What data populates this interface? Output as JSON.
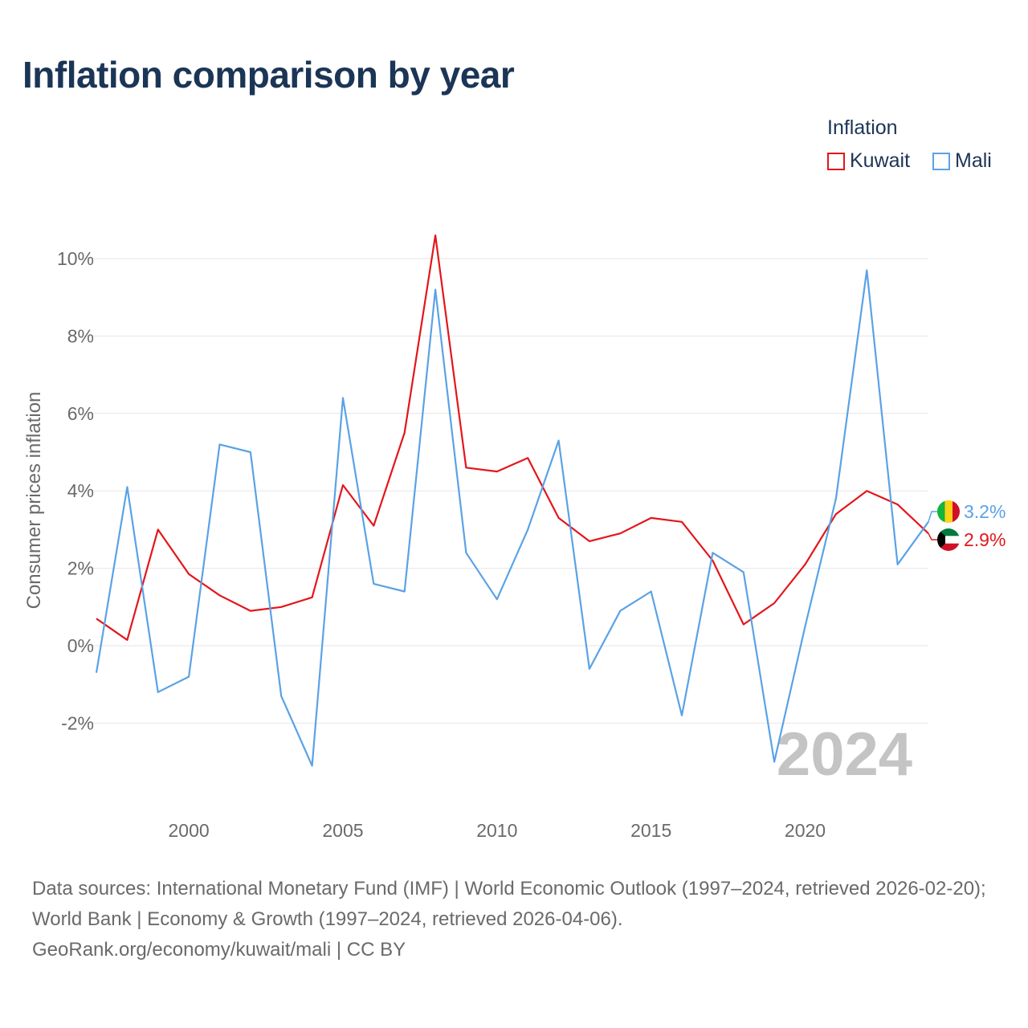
{
  "title": "Inflation comparison by year",
  "legend": {
    "title": "Inflation",
    "items": [
      {
        "label": "Kuwait",
        "color": "#e3161b"
      },
      {
        "label": "Mali",
        "color": "#5aa2e6"
      }
    ]
  },
  "chart_data": {
    "type": "line",
    "title": "Inflation comparison by year",
    "xlabel": "",
    "ylabel": "Consumer prices inflation",
    "xlim": [
      1997,
      2024
    ],
    "ylim": [
      -4,
      11
    ],
    "y_ticks": [
      -2,
      0,
      2,
      4,
      6,
      8,
      10
    ],
    "y_tick_labels": [
      "-2%",
      "0%",
      "2%",
      "4%",
      "6%",
      "8%",
      "10%"
    ],
    "x_ticks": [
      2000,
      2005,
      2010,
      2015,
      2020
    ],
    "x_tick_labels": [
      "2000",
      "2005",
      "2010",
      "2015",
      "2020"
    ],
    "grid": true,
    "legend_position": "top-right",
    "x": [
      1997,
      1998,
      1999,
      2000,
      2001,
      2002,
      2003,
      2004,
      2005,
      2006,
      2007,
      2008,
      2009,
      2010,
      2011,
      2012,
      2013,
      2014,
      2015,
      2016,
      2017,
      2018,
      2019,
      2020,
      2021,
      2022,
      2023,
      2024
    ],
    "series": [
      {
        "name": "Kuwait",
        "color": "#e3161b",
        "values": [
          0.7,
          0.15,
          3.0,
          1.85,
          1.3,
          0.9,
          1.0,
          1.25,
          4.15,
          3.1,
          5.5,
          10.6,
          4.6,
          4.5,
          4.85,
          3.3,
          2.7,
          2.9,
          3.3,
          3.2,
          2.2,
          0.55,
          1.1,
          2.1,
          3.4,
          4.0,
          3.65,
          2.9
        ],
        "end_label": "2.9%"
      },
      {
        "name": "Mali",
        "color": "#5aa2e6",
        "values": [
          -0.7,
          4.1,
          -1.2,
          -0.8,
          5.2,
          5.0,
          -1.3,
          -3.1,
          6.4,
          1.6,
          1.4,
          9.2,
          2.4,
          1.2,
          3.0,
          5.3,
          -0.6,
          0.9,
          1.4,
          -1.8,
          2.4,
          1.9,
          -3.0,
          0.5,
          3.8,
          9.7,
          2.1,
          3.2
        ],
        "end_label": "3.2%"
      }
    ],
    "year_watermark": "2024"
  },
  "footer": {
    "line1": "Data sources: International Monetary Fund (IMF) | World Economic Outlook (1997–2024, retrieved 2026-02-20); World Bank | Economy & Growth (1997–2024, retrieved 2026-04-06).",
    "line2": "GeoRank.org/economy/kuwait/mali | CC BY"
  }
}
